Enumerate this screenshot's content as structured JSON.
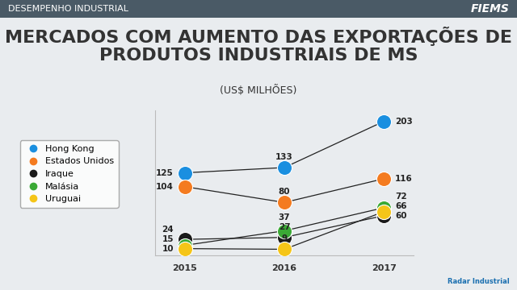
{
  "header": {
    "section": "DESEMPENHO INDUSTRIAL",
    "brand": "FIEMS"
  },
  "footer": "Radar Industrial",
  "chart_data": {
    "type": "line",
    "title": "MERCADOS COM AUMENTO DAS EXPORTAÇÕES DE PRODUTOS INDUSTRIAIS DE MS",
    "subtitle": "(US$ MILHÕES)",
    "categories": [
      "2015",
      "2016",
      "2017"
    ],
    "ylim": [
      0,
      220
    ],
    "tick_labels": "x",
    "data_labels": true,
    "legend": "center left",
    "marker": "circle",
    "line_style": "solid",
    "series": [
      {
        "name": "Hong Kong",
        "color": "#1a8fe0",
        "values": [
          125,
          133,
          203
        ]
      },
      {
        "name": "Estados Unidos",
        "color": "#f47b20",
        "values": [
          104,
          80,
          116
        ]
      },
      {
        "name": "Iraque",
        "color": "#1a1a1a",
        "values": [
          24,
          27,
          60
        ]
      },
      {
        "name": "Malásia",
        "color": "#3aa935",
        "values": [
          15,
          37,
          72
        ]
      },
      {
        "name": "Uruguai",
        "color": "#f5c518",
        "values": [
          10,
          9,
          66
        ]
      }
    ]
  }
}
